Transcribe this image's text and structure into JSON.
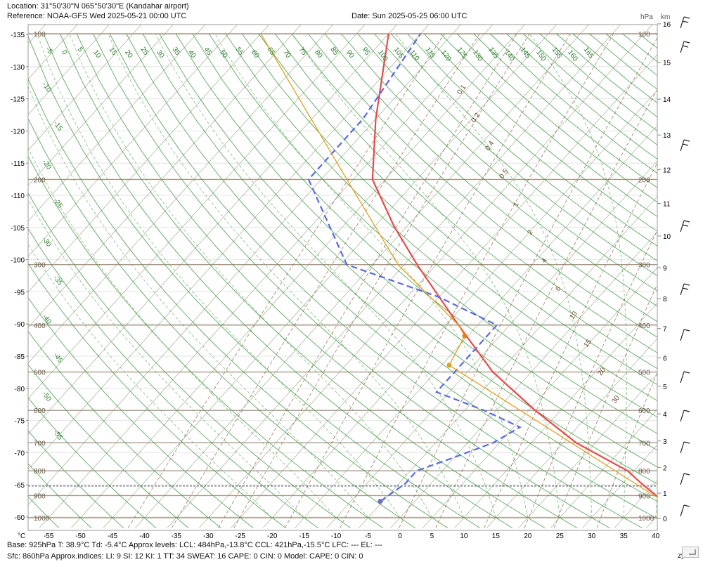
{
  "header": {
    "location": "Location:  31°50'30\"N  065°50'30\"E (Kandahar airport)",
    "reference": "Reference: NOAA-GFS Wed 2025-05-21 00:00 UTC",
    "date": "Date: Sun 2025-05-25 06:00 UTC"
  },
  "footer": {
    "line1": "Base: 925hPa  T: 38.9°C  Td: -5.4°C     Approx levels:  LCL: 484hPa,-13.8°C   CCL: 421hPa,-15.5°C   LFC: ---    EL: ---",
    "line2": "Sfc: 860hPa        Approx.indices:  LI: 9   SI: 12   KI: 1   TT: 34   SWEAT: 16      CAPE: 0  CIN: 0         Model: CAPE: 0 CIN: 0",
    "brand": "zyGrib"
  },
  "chart_data": {
    "type": "line",
    "title": "",
    "xlabel": "°C",
    "right_axis_labels": [
      "hPa",
      "km"
    ],
    "x_ticks": [
      -55,
      -50,
      -45,
      -40,
      -35,
      -30,
      -25,
      -20,
      -15,
      -10,
      -5,
      0,
      5,
      10,
      15,
      20,
      25,
      30,
      35,
      40
    ],
    "left_ticks": [
      -135,
      -130,
      -125,
      -120,
      -115,
      -110,
      -105,
      -100,
      -95,
      -90,
      -85,
      -80,
      -75,
      -70,
      -65,
      -60
    ],
    "pressure_levels": [
      100,
      200,
      300,
      400,
      500,
      600,
      700,
      800,
      900,
      1000
    ],
    "km_ticks": [
      0,
      1,
      2,
      3,
      4,
      5,
      6,
      7,
      8,
      9,
      10,
      11,
      12,
      13,
      14,
      15,
      16
    ],
    "surface_pressure": 860,
    "series": [
      {
        "name": "T",
        "color": "#e84a4a",
        "style": "solid",
        "points": [
          [
            1000,
            44
          ],
          [
            925,
            38.9
          ],
          [
            850,
            33
          ],
          [
            800,
            29
          ],
          [
            700,
            17
          ],
          [
            600,
            6
          ],
          [
            500,
            -6
          ],
          [
            400,
            -18
          ],
          [
            300,
            -33
          ],
          [
            250,
            -42
          ],
          [
            200,
            -52
          ],
          [
            150,
            -60
          ],
          [
            100,
            -70
          ]
        ]
      },
      {
        "name": "Td",
        "color": "#5a6ae0",
        "style": "dashed",
        "points": [
          [
            925,
            -5.4
          ],
          [
            850,
            -4
          ],
          [
            800,
            -4
          ],
          [
            750,
            0
          ],
          [
            700,
            4
          ],
          [
            650,
            6
          ],
          [
            600,
            -2
          ],
          [
            550,
            -12
          ],
          [
            500,
            -12
          ],
          [
            400,
            -12
          ],
          [
            350,
            -25
          ],
          [
            300,
            -44
          ],
          [
            200,
            -62
          ],
          [
            150,
            -62
          ],
          [
            100,
            -65
          ]
        ]
      },
      {
        "name": "parcel",
        "color": "#e0a020",
        "style": "solid",
        "points": [
          [
            925,
            38.9
          ],
          [
            484,
            -13.8
          ],
          [
            421,
            -15.5
          ],
          [
            400,
            -18
          ],
          [
            300,
            -36
          ],
          [
            200,
            -56
          ],
          [
            100,
            -90
          ]
        ]
      }
    ],
    "markers": [
      {
        "name": "LCL",
        "p": 484,
        "t": -13.8,
        "color": "#e0a020"
      },
      {
        "name": "CCL",
        "p": 421,
        "t": -15.5,
        "color": "#e08020"
      },
      {
        "name": "T925",
        "p": 925,
        "t": 38.9,
        "color": "#d06020"
      },
      {
        "name": "Td925",
        "p": 925,
        "t": -5.4,
        "color": "#7070c0"
      }
    ],
    "dry_adiabat_labels": [
      -5,
      0,
      5,
      10,
      15,
      20,
      25,
      30,
      35,
      40,
      45,
      50,
      55,
      60,
      65,
      70,
      75,
      80,
      85,
      90,
      95,
      100,
      105,
      110,
      115,
      120,
      125,
      130,
      135,
      140,
      145,
      150,
      155,
      160,
      165
    ],
    "moist_adiabat_labels": [
      -10,
      -15,
      -20,
      -25,
      -30,
      -35,
      -40,
      -45,
      -50,
      -55
    ],
    "moist_labels_top": [
      -10,
      -5,
      0,
      5,
      10,
      15,
      20,
      25,
      30
    ],
    "mixing_ratio_labels": [
      "0.1",
      "0.2",
      "0.4",
      "0.5",
      "1",
      "2",
      "4",
      "6",
      "10",
      "15",
      "20",
      "30"
    ],
    "wind_barbs_right": true
  }
}
